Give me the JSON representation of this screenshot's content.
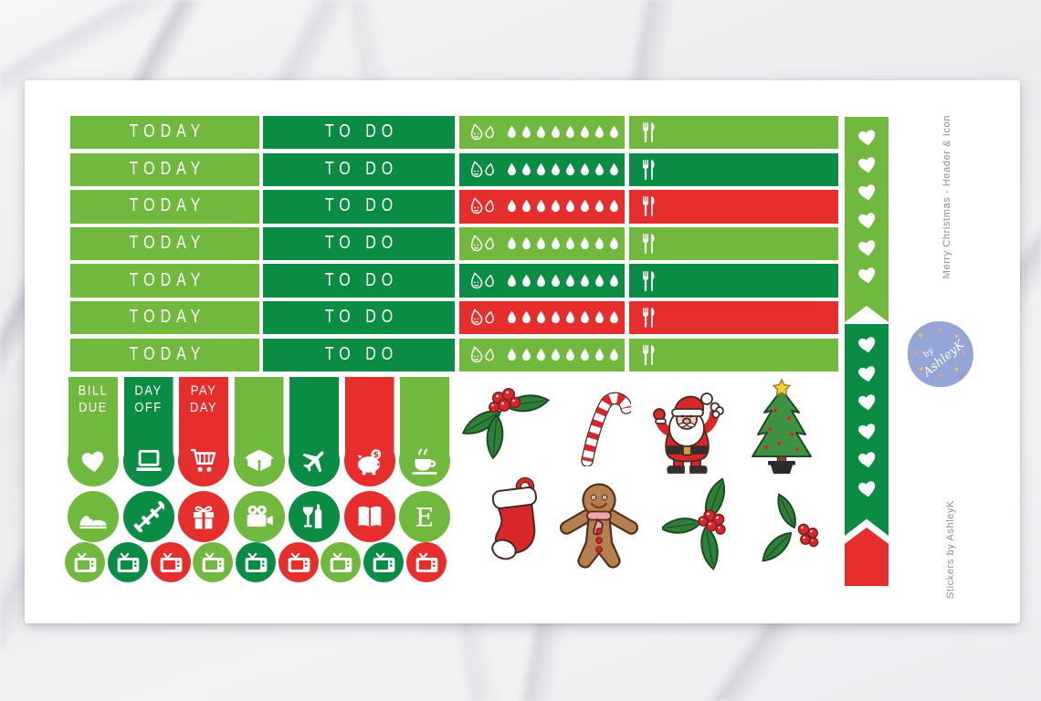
{
  "product": {
    "side_text_top": "Merry Christmas - Header & Icon",
    "side_text_bottom": "Stickers by AshleyK",
    "logo": {
      "line1": "by",
      "line2": "AshleyK"
    }
  },
  "palette": {
    "light_green": "#71b83e",
    "dark_green": "#0b8c45",
    "red": "#e62f2c",
    "sheet": "#ffffff",
    "sticker_text": "#ffffff",
    "logo_blue": "#94a5d6",
    "logo_heart_yellow": "#f0c75e",
    "logo_heart_pink": "#ee9a8b",
    "side_text_gray": "#8f8f8f"
  },
  "labels": {
    "today": "TODAY",
    "todo": "TO DO"
  },
  "icons": {
    "heart_glyph": "♥"
  },
  "header_grid": {
    "drops_per_row": 8,
    "water_icon": "smiley-water-drops",
    "meal_icon": "fork-and-knife",
    "rows": [
      {
        "today_color": "light",
        "todo_color": "dark",
        "water_color": "light",
        "meal_color": "light"
      },
      {
        "today_color": "light",
        "todo_color": "dark",
        "water_color": "dark",
        "meal_color": "dark"
      },
      {
        "today_color": "light",
        "todo_color": "dark",
        "water_color": "red",
        "meal_color": "red"
      },
      {
        "today_color": "light",
        "todo_color": "dark",
        "water_color": "light",
        "meal_color": "light"
      },
      {
        "today_color": "light",
        "todo_color": "dark",
        "water_color": "dark",
        "meal_color": "dark"
      },
      {
        "today_color": "light",
        "todo_color": "dark",
        "water_color": "red",
        "meal_color": "red"
      },
      {
        "today_color": "light",
        "todo_color": "dark",
        "water_color": "light",
        "meal_color": "light"
      }
    ]
  },
  "heart_checklist": {
    "strips": [
      {
        "color": "light",
        "hearts": 6
      },
      {
        "color": "dark",
        "hearts": 6
      }
    ],
    "tail_color": "red"
  },
  "flags": [
    {
      "label": "BILL DUE",
      "color": "light"
    },
    {
      "label": "DAY OFF",
      "color": "dark"
    },
    {
      "label": "PAY DAY",
      "color": "red"
    },
    {
      "label": "",
      "color": "light"
    },
    {
      "label": "",
      "color": "dark"
    },
    {
      "label": "",
      "color": "red"
    },
    {
      "label": "",
      "color": "light"
    }
  ],
  "icon_circles": {
    "row1": [
      {
        "icon": "heart",
        "color": "light"
      },
      {
        "icon": "laptop",
        "color": "dark"
      },
      {
        "icon": "shopping-cart",
        "color": "red"
      },
      {
        "icon": "open-box",
        "color": "light"
      },
      {
        "icon": "airplane",
        "color": "dark"
      },
      {
        "icon": "piggy-bank",
        "color": "red"
      },
      {
        "icon": "coffee-cup",
        "color": "light"
      }
    ],
    "row2": [
      {
        "icon": "sneaker",
        "color": "light"
      },
      {
        "icon": "dumbbells",
        "color": "dark"
      },
      {
        "icon": "gift",
        "color": "red"
      },
      {
        "icon": "video-camera",
        "color": "light"
      },
      {
        "icon": "wine",
        "color": "dark"
      },
      {
        "icon": "open-book",
        "color": "red"
      },
      {
        "icon": "letter-e",
        "color": "light"
      }
    ],
    "tv_row": [
      "light",
      "dark",
      "red",
      "light",
      "dark",
      "red",
      "light",
      "dark",
      "red"
    ]
  },
  "clipart": [
    "holly-bunch",
    "candy-cane",
    "santa-claus",
    "christmas-tree",
    "stocking",
    "gingerbread-man",
    "holly-sprig",
    "holly-sprig-small"
  ]
}
